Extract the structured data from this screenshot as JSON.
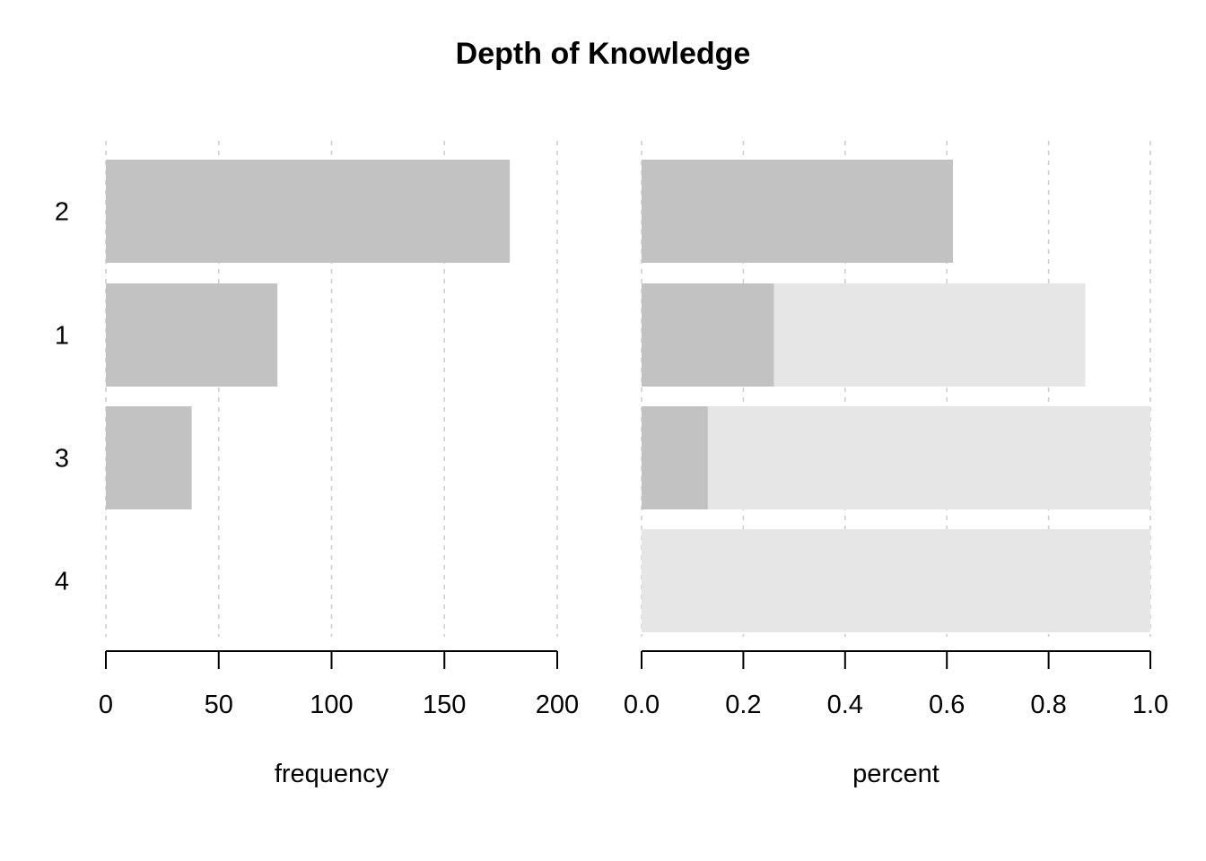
{
  "chart_data": {
    "type": "bar",
    "title": "Depth of Knowledge",
    "categories": [
      "2",
      "1",
      "3",
      "4"
    ],
    "colors": {
      "bar": "#c2c2c2",
      "background_bar": "#e6e6e6",
      "grid": "#cfcfcf",
      "axis": "#000000"
    },
    "panels": [
      {
        "xlabel": "frequency",
        "xlim": [
          0,
          200
        ],
        "ticks": [
          0,
          50,
          100,
          150,
          200
        ],
        "tick_labels": [
          "0",
          "50",
          "100",
          "150",
          "200"
        ],
        "values": [
          179,
          76,
          38,
          0
        ]
      },
      {
        "xlabel": "percent",
        "xlim": [
          0,
          1
        ],
        "ticks": [
          0,
          0.2,
          0.4,
          0.6,
          0.8,
          1.0
        ],
        "tick_labels": [
          "0.0",
          "0.2",
          "0.4",
          "0.6",
          "0.8",
          "1.0"
        ],
        "values": [
          0.612,
          0.26,
          0.13,
          0
        ],
        "background_values": [
          0.612,
          0.872,
          1.0,
          1.0
        ]
      }
    ],
    "grid": true,
    "legend": "none"
  }
}
